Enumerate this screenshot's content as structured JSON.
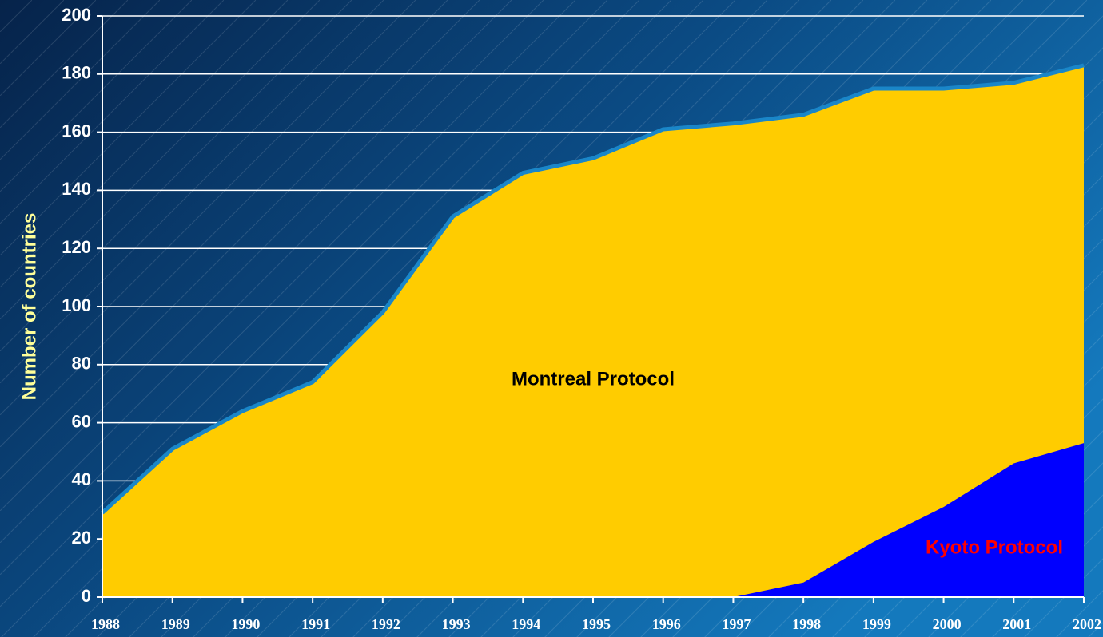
{
  "chart_data": {
    "type": "area",
    "y_label": "Number of countries",
    "categories": [
      "1988",
      "1989",
      "1990",
      "1991",
      "1992",
      "1993",
      "1994",
      "1995",
      "1996",
      "1997",
      "1998",
      "1999",
      "2000",
      "2001",
      "2002"
    ],
    "series": [
      {
        "name": "Montreal Protocol",
        "color": "#ffcc00",
        "edge_color": "#1a86c8",
        "values": [
          29,
          51,
          64,
          74,
          98,
          131,
          146,
          151,
          161,
          163,
          166,
          175,
          175,
          177,
          183
        ]
      },
      {
        "name": "Kyoto Protocol",
        "color": "#0000ff",
        "label_color": "#ff0000",
        "values": [
          null,
          null,
          null,
          null,
          null,
          null,
          null,
          null,
          null,
          0,
          5,
          19,
          31,
          46,
          53
        ]
      }
    ],
    "ylim": [
      0,
      200
    ],
    "yticks": [
      0,
      20,
      40,
      60,
      80,
      100,
      120,
      140,
      160,
      180,
      200
    ],
    "grid": true
  }
}
